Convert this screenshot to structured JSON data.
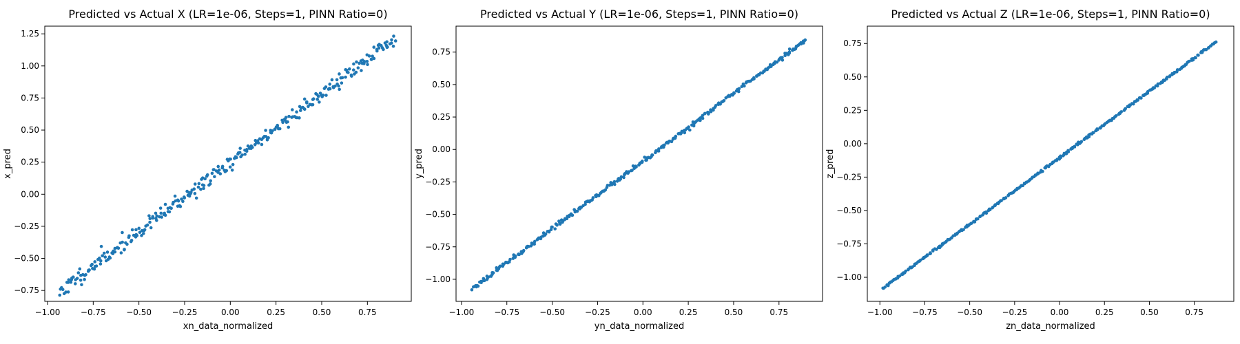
{
  "chart_data": [
    {
      "type": "scatter",
      "title": "Predicted vs Actual X (LR=1e-06, Steps=1, PINN Ratio=0)",
      "xlabel": "xn_data_normalized",
      "ylabel": "x_pred",
      "xlim": [
        -1.015,
        0.99
      ],
      "ylim": [
        -0.835,
        1.31
      ],
      "xticks": [
        -1.0,
        -0.75,
        -0.5,
        -0.25,
        0.0,
        0.25,
        0.5,
        0.75
      ],
      "xtick_labels": [
        "−1.00",
        "−0.75",
        "−0.50",
        "−0.25",
        "0.00",
        "0.25",
        "0.50",
        "0.75"
      ],
      "yticks": [
        -0.75,
        -0.5,
        -0.25,
        0.0,
        0.25,
        0.5,
        0.75,
        1.0,
        1.25
      ],
      "ytick_labels": [
        "−0.75",
        "−0.50",
        "−0.25",
        "0.00",
        "0.25",
        "0.50",
        "0.75",
        "1.00",
        "1.25"
      ],
      "grid": false,
      "color": "#1f77b4",
      "x_range": [
        -0.93,
        0.9
      ],
      "fit": {
        "slope": 1.075,
        "intercept": 0.245
      },
      "spread": 0.03,
      "n": 320,
      "seed": 11
    },
    {
      "type": "scatter",
      "title": "Predicted vs Actual Y (LR=1e-06, Steps=1, PINN Ratio=0)",
      "xlabel": "yn_data_normalized",
      "ylabel": "y_pred",
      "xlim": [
        -1.03,
        0.99
      ],
      "ylim": [
        -1.17,
        0.95
      ],
      "xticks": [
        -1.0,
        -0.75,
        -0.5,
        -0.25,
        0.0,
        0.25,
        0.5,
        0.75
      ],
      "xtick_labels": [
        "−1.00",
        "−0.75",
        "−0.50",
        "−0.25",
        "0.00",
        "0.25",
        "0.50",
        "0.75"
      ],
      "yticks": [
        -1.0,
        -0.75,
        -0.5,
        -0.25,
        0.0,
        0.25,
        0.5,
        0.75
      ],
      "ytick_labels": [
        "−1.00",
        "−0.75",
        "−0.50",
        "−0.25",
        "0.00",
        "0.25",
        "0.50",
        "0.75"
      ],
      "grid": false,
      "color": "#1f77b4",
      "x_range": [
        -0.94,
        0.9
      ],
      "fit": {
        "slope": 1.04,
        "intercept": -0.09
      },
      "spread": 0.008,
      "n": 320,
      "seed": 23
    },
    {
      "type": "scatter",
      "title": "Predicted vs Actual Z (LR=1e-06, Steps=1, PINN Ratio=0)",
      "xlabel": "zn_data_normalized",
      "ylabel": "z_pred",
      "xlim": [
        -1.07,
        0.97
      ],
      "ylim": [
        -1.18,
        0.88
      ],
      "xticks": [
        -1.0,
        -0.75,
        -0.5,
        -0.25,
        0.0,
        0.25,
        0.5,
        0.75
      ],
      "xtick_labels": [
        "−1.00",
        "−0.75",
        "−0.50",
        "−0.25",
        "0.00",
        "0.25",
        "0.50",
        "0.75"
      ],
      "yticks": [
        -1.0,
        -0.75,
        -0.5,
        -0.25,
        0.0,
        0.25,
        0.5,
        0.75
      ],
      "ytick_labels": [
        "−1.00",
        "−0.75",
        "−0.50",
        "−0.25",
        "0.00",
        "0.25",
        "0.50",
        "0.75"
      ],
      "grid": false,
      "color": "#1f77b4",
      "x_range": [
        -0.98,
        0.87
      ],
      "fit": {
        "slope": 0.995,
        "intercept": -0.105
      },
      "spread": 0.004,
      "n": 320,
      "seed": 37
    }
  ]
}
